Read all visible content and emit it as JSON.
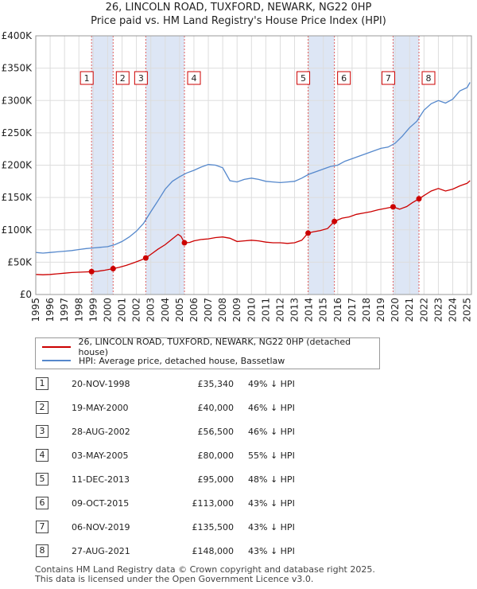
{
  "title_line1": "26, LINCOLN ROAD, TUXFORD, NEWARK, NG22 0HP",
  "title_line2": "Price paid vs. HM Land Registry's House Price Index (HPI)",
  "chart_data": {
    "type": "line",
    "ylim": [
      0,
      400000
    ],
    "xlim": [
      1995,
      2025.3
    ],
    "y_ticks": [
      0,
      50000,
      100000,
      150000,
      200000,
      250000,
      300000,
      350000,
      400000
    ],
    "y_tick_labels": [
      "£0",
      "£50K",
      "£100K",
      "£150K",
      "£200K",
      "£250K",
      "£300K",
      "£350K",
      "£400K"
    ],
    "x_ticks": [
      1995,
      1996,
      1997,
      1998,
      1999,
      2000,
      2001,
      2002,
      2003,
      2004,
      2005,
      2006,
      2007,
      2008,
      2009,
      2010,
      2011,
      2012,
      2013,
      2014,
      2015,
      2016,
      2017,
      2018,
      2019,
      2020,
      2021,
      2022,
      2023,
      2024,
      2025
    ],
    "grid": true,
    "series": [
      {
        "name": "26, LINCOLN ROAD, TUXFORD, NEWARK, NG22 0HP (detached house)",
        "color": "#cc0000",
        "x": [
          1995,
          1995.5,
          1996,
          1996.5,
          1997,
          1997.5,
          1998,
          1998.5,
          1998.88,
          1999.3,
          1999.8,
          2000.38,
          2000.8,
          2001.3,
          2001.8,
          2002.3,
          2002.65,
          2003,
          2003.5,
          2004,
          2004.5,
          2004.9,
          2005.1,
          2005.34,
          2005.7,
          2006,
          2006.5,
          2007,
          2007.5,
          2008,
          2008.5,
          2009,
          2009.5,
          2010,
          2010.5,
          2011,
          2011.5,
          2012,
          2012.5,
          2013,
          2013.5,
          2013.94,
          2014.3,
          2014.8,
          2015.3,
          2015.77,
          2016.3,
          2016.8,
          2017.3,
          2017.8,
          2018.3,
          2018.8,
          2019.3,
          2019.85,
          2020.3,
          2020.8,
          2021.2,
          2021.65,
          2022,
          2022.5,
          2023,
          2023.5,
          2024,
          2024.5,
          2025,
          2025.2
        ],
        "values": [
          31000,
          30500,
          31000,
          32000,
          33000,
          34000,
          34500,
          35000,
          35340,
          36000,
          37500,
          40000,
          42000,
          45000,
          49000,
          53000,
          56500,
          62000,
          70000,
          77000,
          86000,
          93000,
          90000,
          80000,
          80500,
          83000,
          85000,
          86000,
          88000,
          89000,
          87000,
          82000,
          83000,
          84000,
          83000,
          81000,
          80000,
          80000,
          79000,
          80000,
          84000,
          95000,
          97000,
          99000,
          102000,
          113000,
          118000,
          120000,
          124000,
          126000,
          128000,
          131000,
          133000,
          135500,
          132000,
          136000,
          142000,
          148000,
          153000,
          160000,
          164000,
          160000,
          163000,
          168000,
          172000,
          176000
        ]
      },
      {
        "name": "HPI: Average price, detached house, Bassetlaw",
        "color": "#5588cc",
        "x": [
          1995,
          1995.5,
          1996,
          1996.5,
          1997,
          1997.5,
          1998,
          1998.5,
          1999,
          1999.5,
          2000,
          2000.5,
          2001,
          2001.5,
          2002,
          2002.5,
          2003,
          2003.5,
          2004,
          2004.5,
          2005,
          2005.5,
          2006,
          2006.5,
          2007,
          2007.5,
          2008,
          2008.5,
          2009,
          2009.5,
          2010,
          2010.5,
          2011,
          2011.5,
          2012,
          2012.5,
          2013,
          2013.5,
          2014,
          2014.5,
          2015,
          2015.5,
          2016,
          2016.5,
          2017,
          2017.5,
          2018,
          2018.5,
          2019,
          2019.5,
          2020,
          2020.5,
          2021,
          2021.5,
          2022,
          2022.5,
          2023,
          2023.5,
          2024,
          2024.5,
          2025,
          2025.2
        ],
        "values": [
          65000,
          64000,
          65000,
          66000,
          67000,
          68000,
          69500,
          71000,
          72000,
          73000,
          74000,
          77000,
          82000,
          89000,
          98000,
          110000,
          128000,
          145000,
          163000,
          175000,
          182000,
          188000,
          192000,
          197000,
          201000,
          200000,
          196000,
          176000,
          174000,
          178000,
          180000,
          178000,
          175000,
          174000,
          173000,
          174000,
          175000,
          180000,
          186000,
          190000,
          194000,
          198000,
          200000,
          206000,
          210000,
          214000,
          218000,
          222000,
          226000,
          228000,
          234000,
          245000,
          258000,
          268000,
          285000,
          295000,
          300000,
          296000,
          302000,
          315000,
          320000,
          328000
        ]
      }
    ],
    "markers": [
      {
        "label": "1",
        "x": 1998.88,
        "value": 35340
      },
      {
        "label": "2",
        "x": 2000.38,
        "value": 40000
      },
      {
        "label": "3",
        "x": 2002.65,
        "value": 56500
      },
      {
        "label": "4",
        "x": 2005.34,
        "value": 80000
      },
      {
        "label": "5",
        "x": 2013.94,
        "value": 95000
      },
      {
        "label": "6",
        "x": 2015.77,
        "value": 113000
      },
      {
        "label": "7",
        "x": 2019.85,
        "value": 135500
      },
      {
        "label": "8",
        "x": 2021.65,
        "value": 148000
      }
    ],
    "shaded_ranges": [
      [
        1998.88,
        2000.38
      ],
      [
        2002.65,
        2005.34
      ],
      [
        2013.94,
        2015.77
      ],
      [
        2019.85,
        2021.65
      ]
    ]
  },
  "legend": {
    "property_label": "26, LINCOLN ROAD, TUXFORD, NEWARK, NG22 0HP (detached house)",
    "hpi_label": "HPI: Average price, detached house, Bassetlaw",
    "property_color": "#cc0000",
    "hpi_color": "#5588cc"
  },
  "sales": [
    {
      "num": "1",
      "date": "20-NOV-1998",
      "price": "£35,340",
      "hpi": "49% ↓ HPI"
    },
    {
      "num": "2",
      "date": "19-MAY-2000",
      "price": "£40,000",
      "hpi": "46% ↓ HPI"
    },
    {
      "num": "3",
      "date": "28-AUG-2002",
      "price": "£56,500",
      "hpi": "46% ↓ HPI"
    },
    {
      "num": "4",
      "date": "03-MAY-2005",
      "price": "£80,000",
      "hpi": "55% ↓ HPI"
    },
    {
      "num": "5",
      "date": "11-DEC-2013",
      "price": "£95,000",
      "hpi": "48% ↓ HPI"
    },
    {
      "num": "6",
      "date": "09-OCT-2015",
      "price": "£113,000",
      "hpi": "43% ↓ HPI"
    },
    {
      "num": "7",
      "date": "06-NOV-2019",
      "price": "£135,500",
      "hpi": "43% ↓ HPI"
    },
    {
      "num": "8",
      "date": "27-AUG-2021",
      "price": "£148,000",
      "hpi": "43% ↓ HPI"
    }
  ],
  "footer_line1": "Contains HM Land Registry data © Crown copyright and database right 2025.",
  "footer_line2": "This data is licensed under the Open Government Licence v3.0."
}
